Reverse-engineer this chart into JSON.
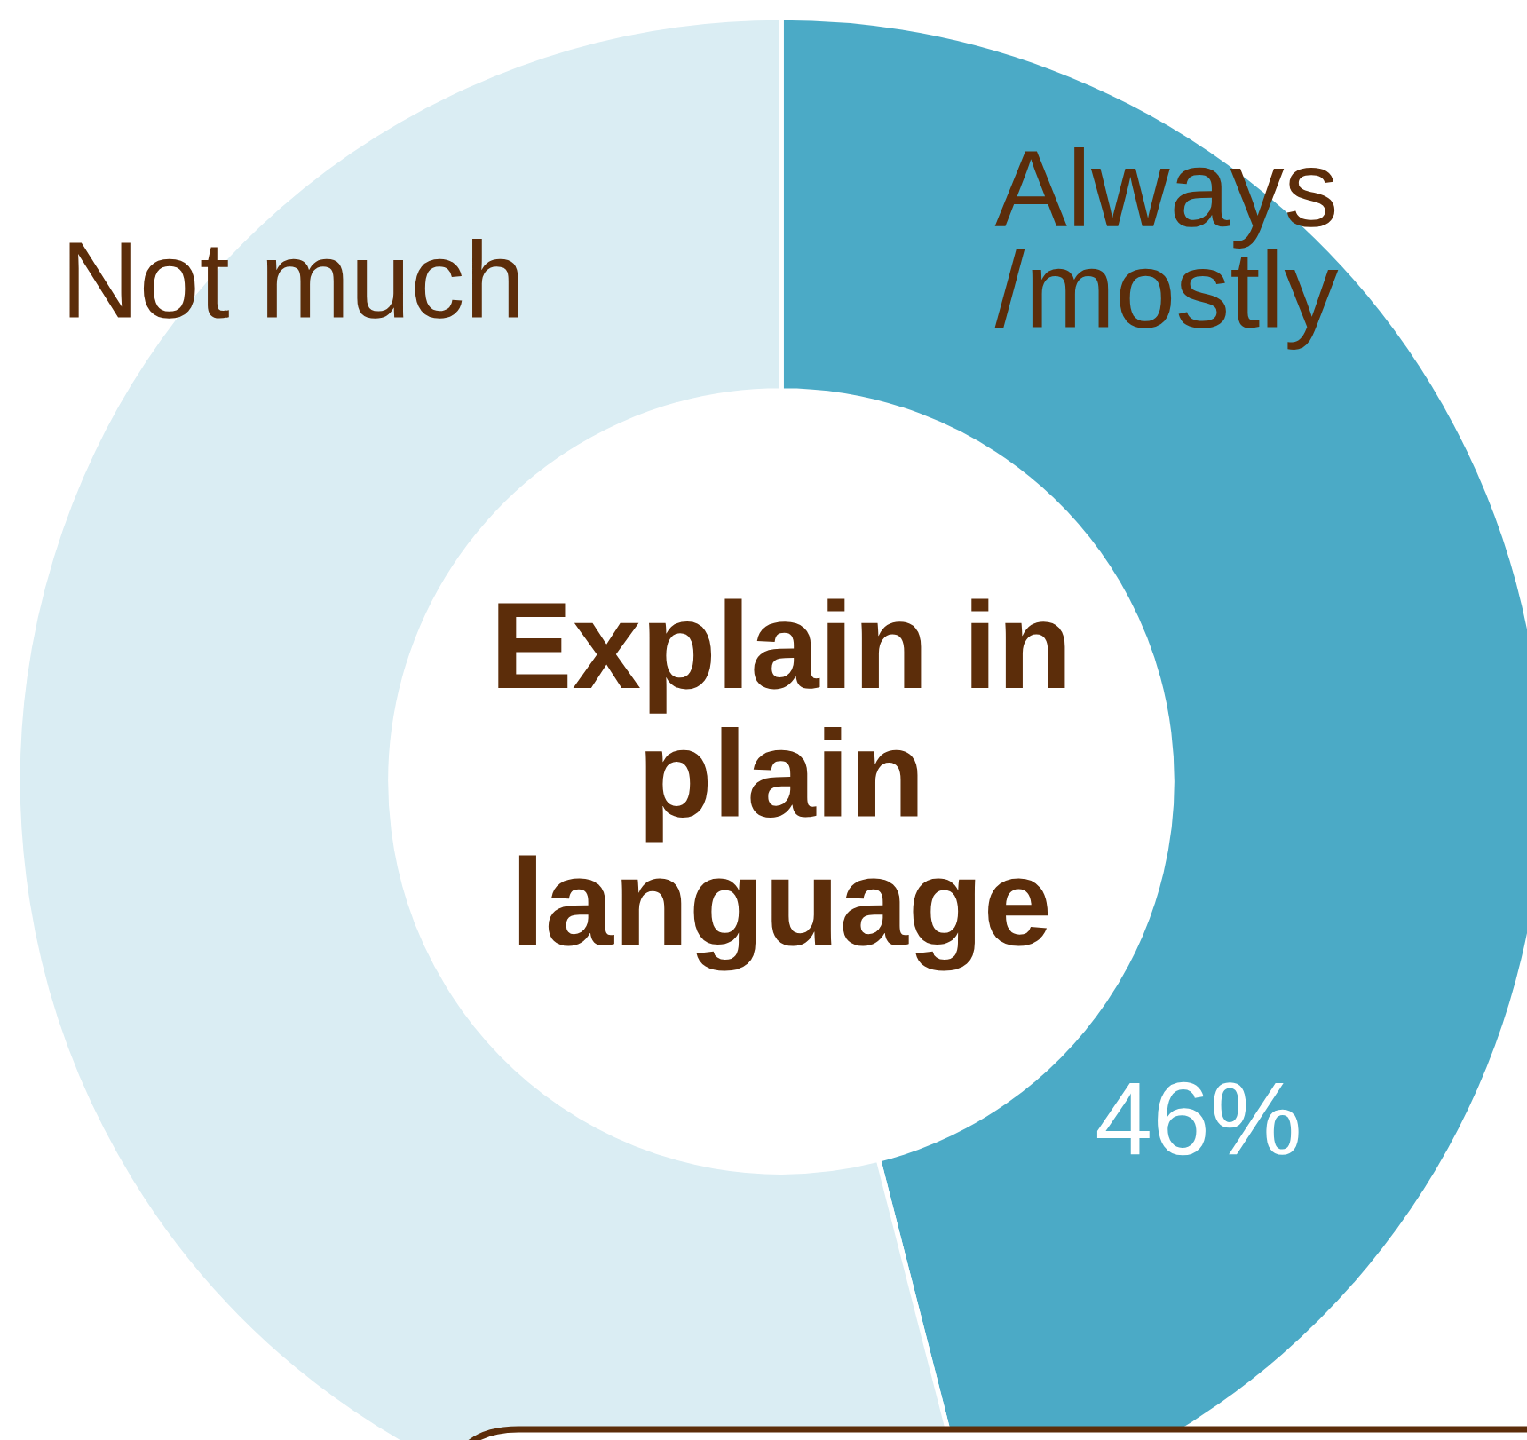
{
  "chart_data": {
    "type": "donut",
    "title": "Explain in\nplain\nlanguage",
    "categories": [
      "Always\n/mostly",
      "Not much"
    ],
    "values": [
      46,
      54
    ],
    "colors": [
      "#4baac6",
      "#daedf3"
    ],
    "value_labels": [
      "46%",
      null
    ],
    "legend": false
  }
}
